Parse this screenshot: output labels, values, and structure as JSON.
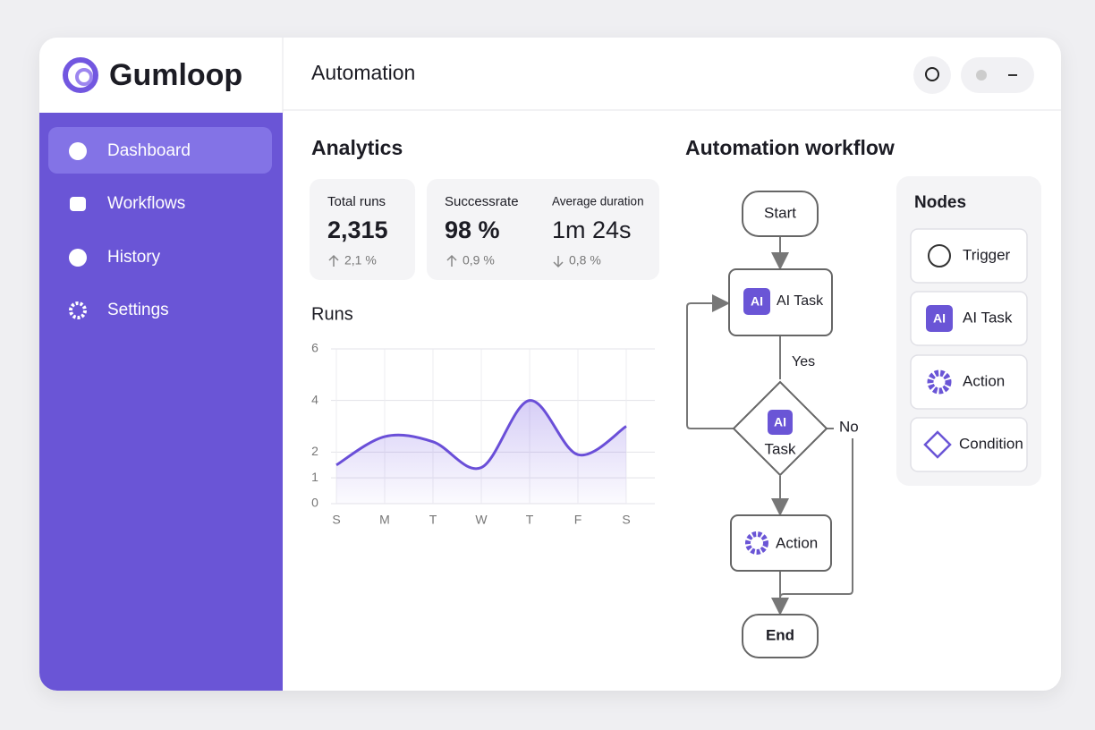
{
  "brand": "Gumloop",
  "nav": [
    "Dashboard",
    "Workflows",
    "History",
    "Settings"
  ],
  "header": {
    "title": "Automation"
  },
  "analytics": {
    "title": "Analytics",
    "stats": [
      {
        "label": "Total runs",
        "value": "2,315",
        "change": "2,1 %"
      },
      {
        "label": "Successrate",
        "value": "98 %",
        "change": "0,9 %"
      },
      {
        "label": "Average duration",
        "value": "1m 24s",
        "change": "0,8 %"
      }
    ]
  },
  "chart_data": {
    "type": "line",
    "title": "Runs",
    "categories": [
      "S",
      "M",
      "T",
      "W",
      "T",
      "F",
      "S"
    ],
    "values": [
      1.5,
      2.6,
      2.4,
      1.4,
      4.0,
      1.9,
      3.0
    ],
    "color": "#6a4fd8",
    "ylim": [
      0,
      6
    ],
    "yticks": [
      0,
      1,
      2,
      4,
      6
    ],
    "grid": true
  },
  "workflow": {
    "title": "Automation workflow",
    "ai_badge": "AI",
    "nodes": [
      "Start",
      "AI Task",
      "Task",
      "Action",
      "End"
    ],
    "edges": [
      "Yes",
      "No"
    ]
  },
  "palette": {
    "title": "Nodes",
    "items": [
      "Trigger",
      "AI Task",
      "Action",
      "Condition"
    ]
  }
}
